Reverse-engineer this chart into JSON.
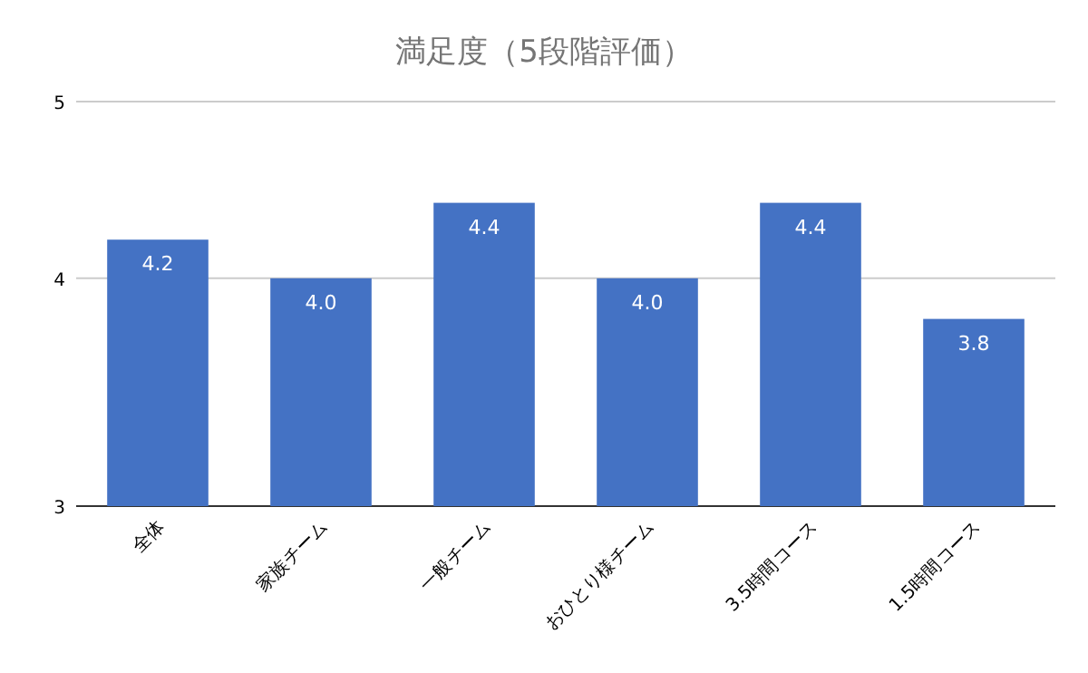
{
  "chart_data": {
    "type": "bar",
    "title": "満足度（5段階評価）",
    "categories": [
      "全体",
      "家族チーム",
      "一般チーム",
      "おひとり様チーム",
      "3.5時間コース",
      "1.5時間コース"
    ],
    "values": [
      4.2,
      4.0,
      4.4,
      4.0,
      4.4,
      3.8
    ],
    "value_labels": [
      "4.2",
      "4.0",
      "4.4",
      "4.0",
      "4.4",
      "3.8"
    ],
    "color": "#4472c4",
    "log": true,
    "ylim": [
      3,
      5
    ],
    "yticks": [
      3,
      4,
      5
    ],
    "grid": "y"
  }
}
